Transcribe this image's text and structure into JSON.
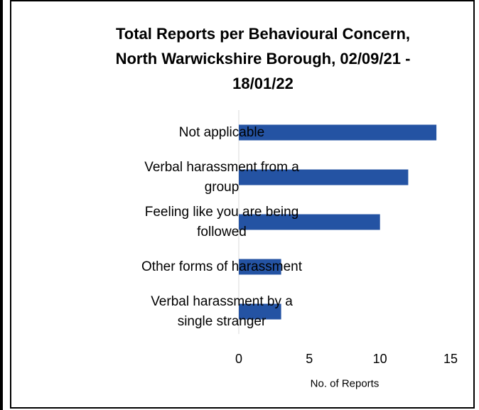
{
  "chart_data": {
    "type": "bar",
    "orientation": "horizontal",
    "title_lines": [
      "Total Reports per Behavioural Concern,",
      "North Warwickshire Borough, 02/09/21 -",
      "18/01/22"
    ],
    "xlabel": "No. of Reports",
    "ylabel": "",
    "categories": [
      [
        "Not applicable"
      ],
      [
        "Verbal harassment from a",
        "group"
      ],
      [
        "Feeling like you are being",
        "followed"
      ],
      [
        "Other forms of harassment"
      ],
      [
        "Verbal harassment by a",
        "single stranger"
      ]
    ],
    "values": [
      14,
      12,
      10,
      3,
      3
    ],
    "xlim": [
      0,
      15
    ],
    "xticks": [
      "0",
      "5",
      "10",
      "15"
    ],
    "grid": false,
    "legend": "none",
    "bar_color": "#2453A3"
  }
}
